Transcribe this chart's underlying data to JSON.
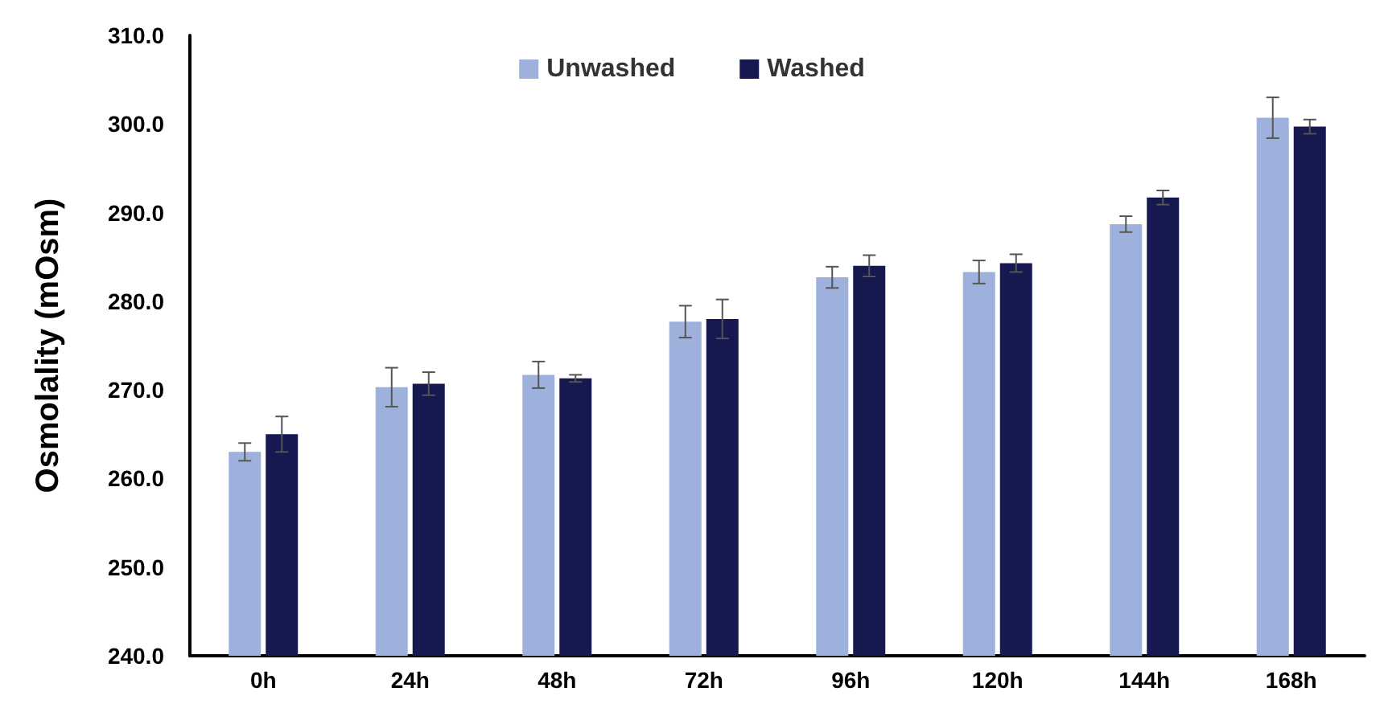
{
  "chart_data": {
    "type": "bar",
    "ylabel": "Osmolality (mOsm)",
    "categories": [
      "0h",
      "24h",
      "48h",
      "72h",
      "96h",
      "120h",
      "144h",
      "168h"
    ],
    "series": [
      {
        "name": "Unwashed",
        "color": "#9eb1dc",
        "values": [
          263.0,
          270.3,
          271.7,
          277.7,
          282.7,
          283.3,
          288.7,
          300.7
        ],
        "errors": [
          1.0,
          2.2,
          1.5,
          1.8,
          1.2,
          1.3,
          0.9,
          2.3
        ]
      },
      {
        "name": "Washed",
        "color": "#161850",
        "values": [
          265.0,
          270.7,
          271.3,
          278.0,
          284.0,
          284.3,
          291.7,
          299.7
        ],
        "errors": [
          2.0,
          1.3,
          0.4,
          2.2,
          1.2,
          1.0,
          0.8,
          0.8
        ]
      }
    ],
    "ylim": [
      240,
      310
    ],
    "yticks": [
      {
        "value": 240,
        "label": "240.0"
      },
      {
        "value": 250,
        "label": "250.0"
      },
      {
        "value": 260,
        "label": "260.0"
      },
      {
        "value": 270,
        "label": "270.0"
      },
      {
        "value": 280,
        "label": "280.0"
      },
      {
        "value": 290,
        "label": "290.0"
      },
      {
        "value": 300,
        "label": "300.0"
      },
      {
        "value": 310,
        "label": "310.0"
      }
    ],
    "grid": false,
    "legend": "top"
  }
}
